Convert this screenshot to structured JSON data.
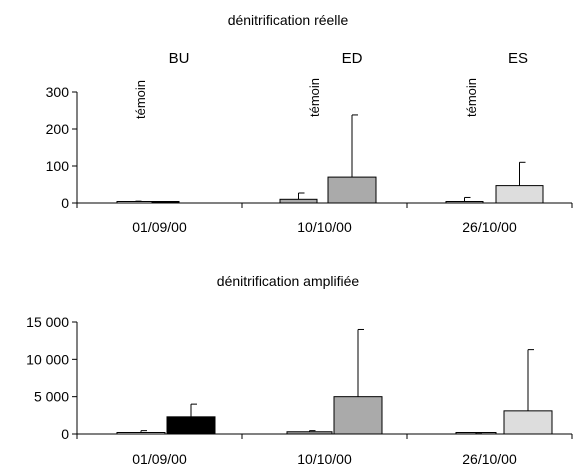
{
  "chart_data": [
    {
      "type": "bar",
      "title": "dénitrification réelle",
      "categories": [
        "01/09/00",
        "10/10/00",
        "26/10/00"
      ],
      "group_labels": [
        "BU",
        "ED",
        "ES"
      ],
      "control_label": "témoin",
      "ylim": [
        0,
        300
      ],
      "yticks": [
        0,
        100,
        200,
        300
      ],
      "ytick_labels": [
        "0",
        "100",
        "200",
        "300"
      ],
      "series": [
        {
          "values": [
            1,
            10,
            3
          ],
          "errors": [
            4,
            17,
            12
          ],
          "colors": [
            "#ffffff",
            "#aaaaaa",
            "#cccccc"
          ]
        },
        {
          "values": [
            1,
            70,
            47
          ],
          "errors": [
            1,
            168,
            63
          ],
          "colors": [
            "#000000",
            "#aaaaaa",
            "#dddddd"
          ]
        }
      ]
    },
    {
      "type": "bar",
      "title": "dénitrification amplifiée",
      "categories": [
        "01/09/00",
        "10/10/00",
        "26/10/00"
      ],
      "ylim": [
        0,
        15000
      ],
      "yticks": [
        0,
        5000,
        10000,
        15000
      ],
      "ytick_labels": [
        "0",
        "5 000",
        "10 000",
        "15 000"
      ],
      "series": [
        {
          "values": [
            200,
            300,
            0
          ],
          "errors": [
            250,
            150,
            40
          ],
          "colors": [
            "#ffffff",
            "#aaaaaa",
            "#cccccc"
          ]
        },
        {
          "values": [
            2300,
            5000,
            3100
          ],
          "errors": [
            1700,
            9000,
            8200
          ],
          "colors": [
            "#000000",
            "#aaaaaa",
            "#dddddd"
          ]
        }
      ]
    }
  ]
}
